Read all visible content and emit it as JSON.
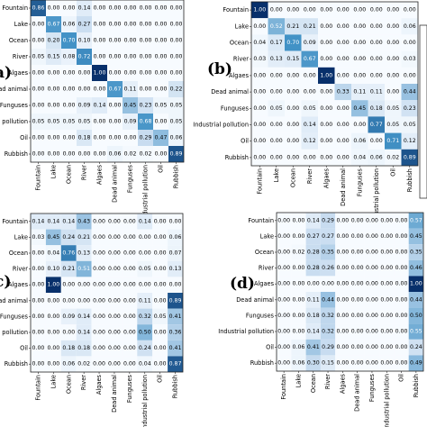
{
  "chart_data": [
    {
      "type": "heatmap",
      "panel_label": "",
      "rows": [
        "Fountain",
        "Lake",
        "Ocean",
        "River",
        "Algaes",
        "Dead animal",
        "Funguses",
        "Industrial pollution",
        "Oil",
        "Rubbish"
      ],
      "cols": [
        "Fountain",
        "Lake",
        "Ocean",
        "River",
        "Algaes",
        "Dead animal",
        "Funguses",
        "Industrial pollution",
        "Oil",
        "Rubbish"
      ],
      "values": [
        [
          0.86,
          0.0,
          0.0,
          0.14,
          0.0,
          0.0,
          0.0,
          0.0,
          0.0,
          0.0
        ],
        [
          0.0,
          0.67,
          0.06,
          0.27,
          0.0,
          0.0,
          0.0,
          0.0,
          0.0,
          0.0
        ],
        [
          0.0,
          0.2,
          0.7,
          0.1,
          0.0,
          0.0,
          0.0,
          0.0,
          0.0,
          0.0
        ],
        [
          0.05,
          0.15,
          0.08,
          0.72,
          0.0,
          0.0,
          0.0,
          0.0,
          0.0,
          0.0
        ],
        [
          0.0,
          0.0,
          0.0,
          0.0,
          1.0,
          0.0,
          0.0,
          0.0,
          0.0,
          0.0
        ],
        [
          0.0,
          0.0,
          0.0,
          0.0,
          0.0,
          0.67,
          0.11,
          0.0,
          0.0,
          0.22
        ],
        [
          0.0,
          0.0,
          0.0,
          0.09,
          0.14,
          0.0,
          0.45,
          0.23,
          0.05,
          0.05
        ],
        [
          0.05,
          0.05,
          0.05,
          0.05,
          0.0,
          0.0,
          0.09,
          0.68,
          0.0,
          0.05
        ],
        [
          0.0,
          0.0,
          0.0,
          0.18,
          0.0,
          0.0,
          0.0,
          0.29,
          0.47,
          0.06
        ],
        [
          0.0,
          0.0,
          0.0,
          0.0,
          0.0,
          0.06,
          0.02,
          0.02,
          0.0,
          0.89
        ]
      ]
    },
    {
      "type": "heatmap",
      "panel_label": "(b)",
      "rows": [
        "Fountain",
        "Lake",
        "Ocean",
        "River",
        "Algaes",
        "Dead animal",
        "Funguses",
        "Industrial pollution",
        "Oil",
        "Rubbish"
      ],
      "cols": [
        "Fountain",
        "Lake",
        "Ocean",
        "River",
        "Algaes",
        "Dead animal",
        "Funguses",
        "Industrial pollution",
        "Oil",
        "Rubbish"
      ],
      "values": [
        [
          1.0,
          0.0,
          0.0,
          0.0,
          0.0,
          0.0,
          0.0,
          0.0,
          0.0,
          0.0
        ],
        [
          0.0,
          0.52,
          0.21,
          0.21,
          0.0,
          0.0,
          0.0,
          0.0,
          0.0,
          0.06
        ],
        [
          0.04,
          0.17,
          0.7,
          0.09,
          0.0,
          0.0,
          0.0,
          0.0,
          0.0,
          0.0
        ],
        [
          0.03,
          0.13,
          0.15,
          0.67,
          0.0,
          0.0,
          0.0,
          0.0,
          0.0,
          0.03
        ],
        [
          0.0,
          0.0,
          0.0,
          0.0,
          1.0,
          0.0,
          0.0,
          0.0,
          0.0,
          0.0
        ],
        [
          0.0,
          0.0,
          0.0,
          0.0,
          0.0,
          0.33,
          0.11,
          0.11,
          0.0,
          0.44
        ],
        [
          0.0,
          0.05,
          0.0,
          0.05,
          0.0,
          0.0,
          0.45,
          0.18,
          0.05,
          0.23
        ],
        [
          0.0,
          0.0,
          0.0,
          0.14,
          0.0,
          0.0,
          0.0,
          0.77,
          0.05,
          0.05
        ],
        [
          0.0,
          0.0,
          0.0,
          0.12,
          0.0,
          0.0,
          0.06,
          0.0,
          0.71,
          0.12
        ],
        [
          0.0,
          0.0,
          0.0,
          0.0,
          0.0,
          0.0,
          0.04,
          0.06,
          0.02,
          0.89
        ]
      ]
    },
    {
      "type": "heatmap",
      "panel_label": "",
      "rows": [
        "Fountain",
        "Lake",
        "Ocean",
        "River",
        "Algaes",
        "Dead animal",
        "Funguses",
        "Industrial pollution",
        "Oil",
        "Rubbish"
      ],
      "cols": [
        "Fountain",
        "Lake",
        "Ocean",
        "River",
        "Algaes",
        "Dead animal",
        "Funguses",
        "Industrial pollution",
        "Oil",
        "Rubbish"
      ],
      "values": [
        [
          0.14,
          0.14,
          0.14,
          0.43,
          0.0,
          0.0,
          0.0,
          0.14,
          0.0,
          0.0
        ],
        [
          0.03,
          0.45,
          0.24,
          0.21,
          0.0,
          0.0,
          0.0,
          0.0,
          0.0,
          0.06
        ],
        [
          0.0,
          0.04,
          0.76,
          0.13,
          0.0,
          0.0,
          0.0,
          0.0,
          0.0,
          0.07
        ],
        [
          0.0,
          0.1,
          0.21,
          0.51,
          0.0,
          0.0,
          0.0,
          0.05,
          0.0,
          0.13
        ],
        [
          0.0,
          1.0,
          0.0,
          0.0,
          0.0,
          0.0,
          0.0,
          0.0,
          0.0,
          0.0
        ],
        [
          0.0,
          0.0,
          0.0,
          0.0,
          0.0,
          0.0,
          0.0,
          0.11,
          0.0,
          0.89
        ],
        [
          0.0,
          0.0,
          0.09,
          0.14,
          0.0,
          0.0,
          0.0,
          0.32,
          0.05,
          0.41
        ],
        [
          0.0,
          0.0,
          0.0,
          0.14,
          0.0,
          0.0,
          0.0,
          0.5,
          0.0,
          0.36
        ],
        [
          0.0,
          0.0,
          0.18,
          0.18,
          0.0,
          0.0,
          0.0,
          0.24,
          0.0,
          0.41
        ],
        [
          0.0,
          0.0,
          0.06,
          0.02,
          0.0,
          0.0,
          0.0,
          0.04,
          0.0,
          0.87
        ]
      ]
    },
    {
      "type": "heatmap",
      "panel_label": "(d)",
      "rows": [
        "Fountain",
        "Lake",
        "Ocean",
        "River",
        "Algaes",
        "Dead animal",
        "Funguses",
        "Industrial pollution",
        "Oil",
        "Rubbish"
      ],
      "cols": [
        "Fountain",
        "Lake",
        "Ocean",
        "River",
        "Algaes",
        "Dead animal",
        "Funguses",
        "Industrial pollution",
        "Oil",
        "Rubbish"
      ],
      "values": [
        [
          0.0,
          0.0,
          0.14,
          0.29,
          0.0,
          0.0,
          0.0,
          0.0,
          0.0,
          0.57
        ],
        [
          0.0,
          0.0,
          0.27,
          0.27,
          0.0,
          0.0,
          0.0,
          0.0,
          0.0,
          0.45
        ],
        [
          0.0,
          0.02,
          0.28,
          0.35,
          0.0,
          0.0,
          0.0,
          0.0,
          0.0,
          0.35
        ],
        [
          0.0,
          0.0,
          0.28,
          0.26,
          0.0,
          0.0,
          0.0,
          0.0,
          0.0,
          0.46
        ],
        [
          0.0,
          0.0,
          0.0,
          0.0,
          0.0,
          0.0,
          0.0,
          0.0,
          0.0,
          1.0
        ],
        [
          0.0,
          0.0,
          0.11,
          0.44,
          0.0,
          0.0,
          0.0,
          0.0,
          0.0,
          0.44
        ],
        [
          0.0,
          0.0,
          0.18,
          0.32,
          0.0,
          0.0,
          0.0,
          0.0,
          0.0,
          0.5
        ],
        [
          0.0,
          0.0,
          0.14,
          0.32,
          0.0,
          0.0,
          0.0,
          0.0,
          0.0,
          0.55
        ],
        [
          0.0,
          0.06,
          0.41,
          0.29,
          0.0,
          0.0,
          0.0,
          0.0,
          0.0,
          0.24
        ],
        [
          0.0,
          0.06,
          0.3,
          0.15,
          0.0,
          0.0,
          0.0,
          0.0,
          0.0,
          0.49
        ]
      ]
    }
  ],
  "colors": {
    "low": "#f7fbff",
    "high": "#08306b",
    "text_dark": "#000000",
    "text_light": "#ffffff"
  },
  "stray_labels": [
    "a)",
    "c)"
  ]
}
